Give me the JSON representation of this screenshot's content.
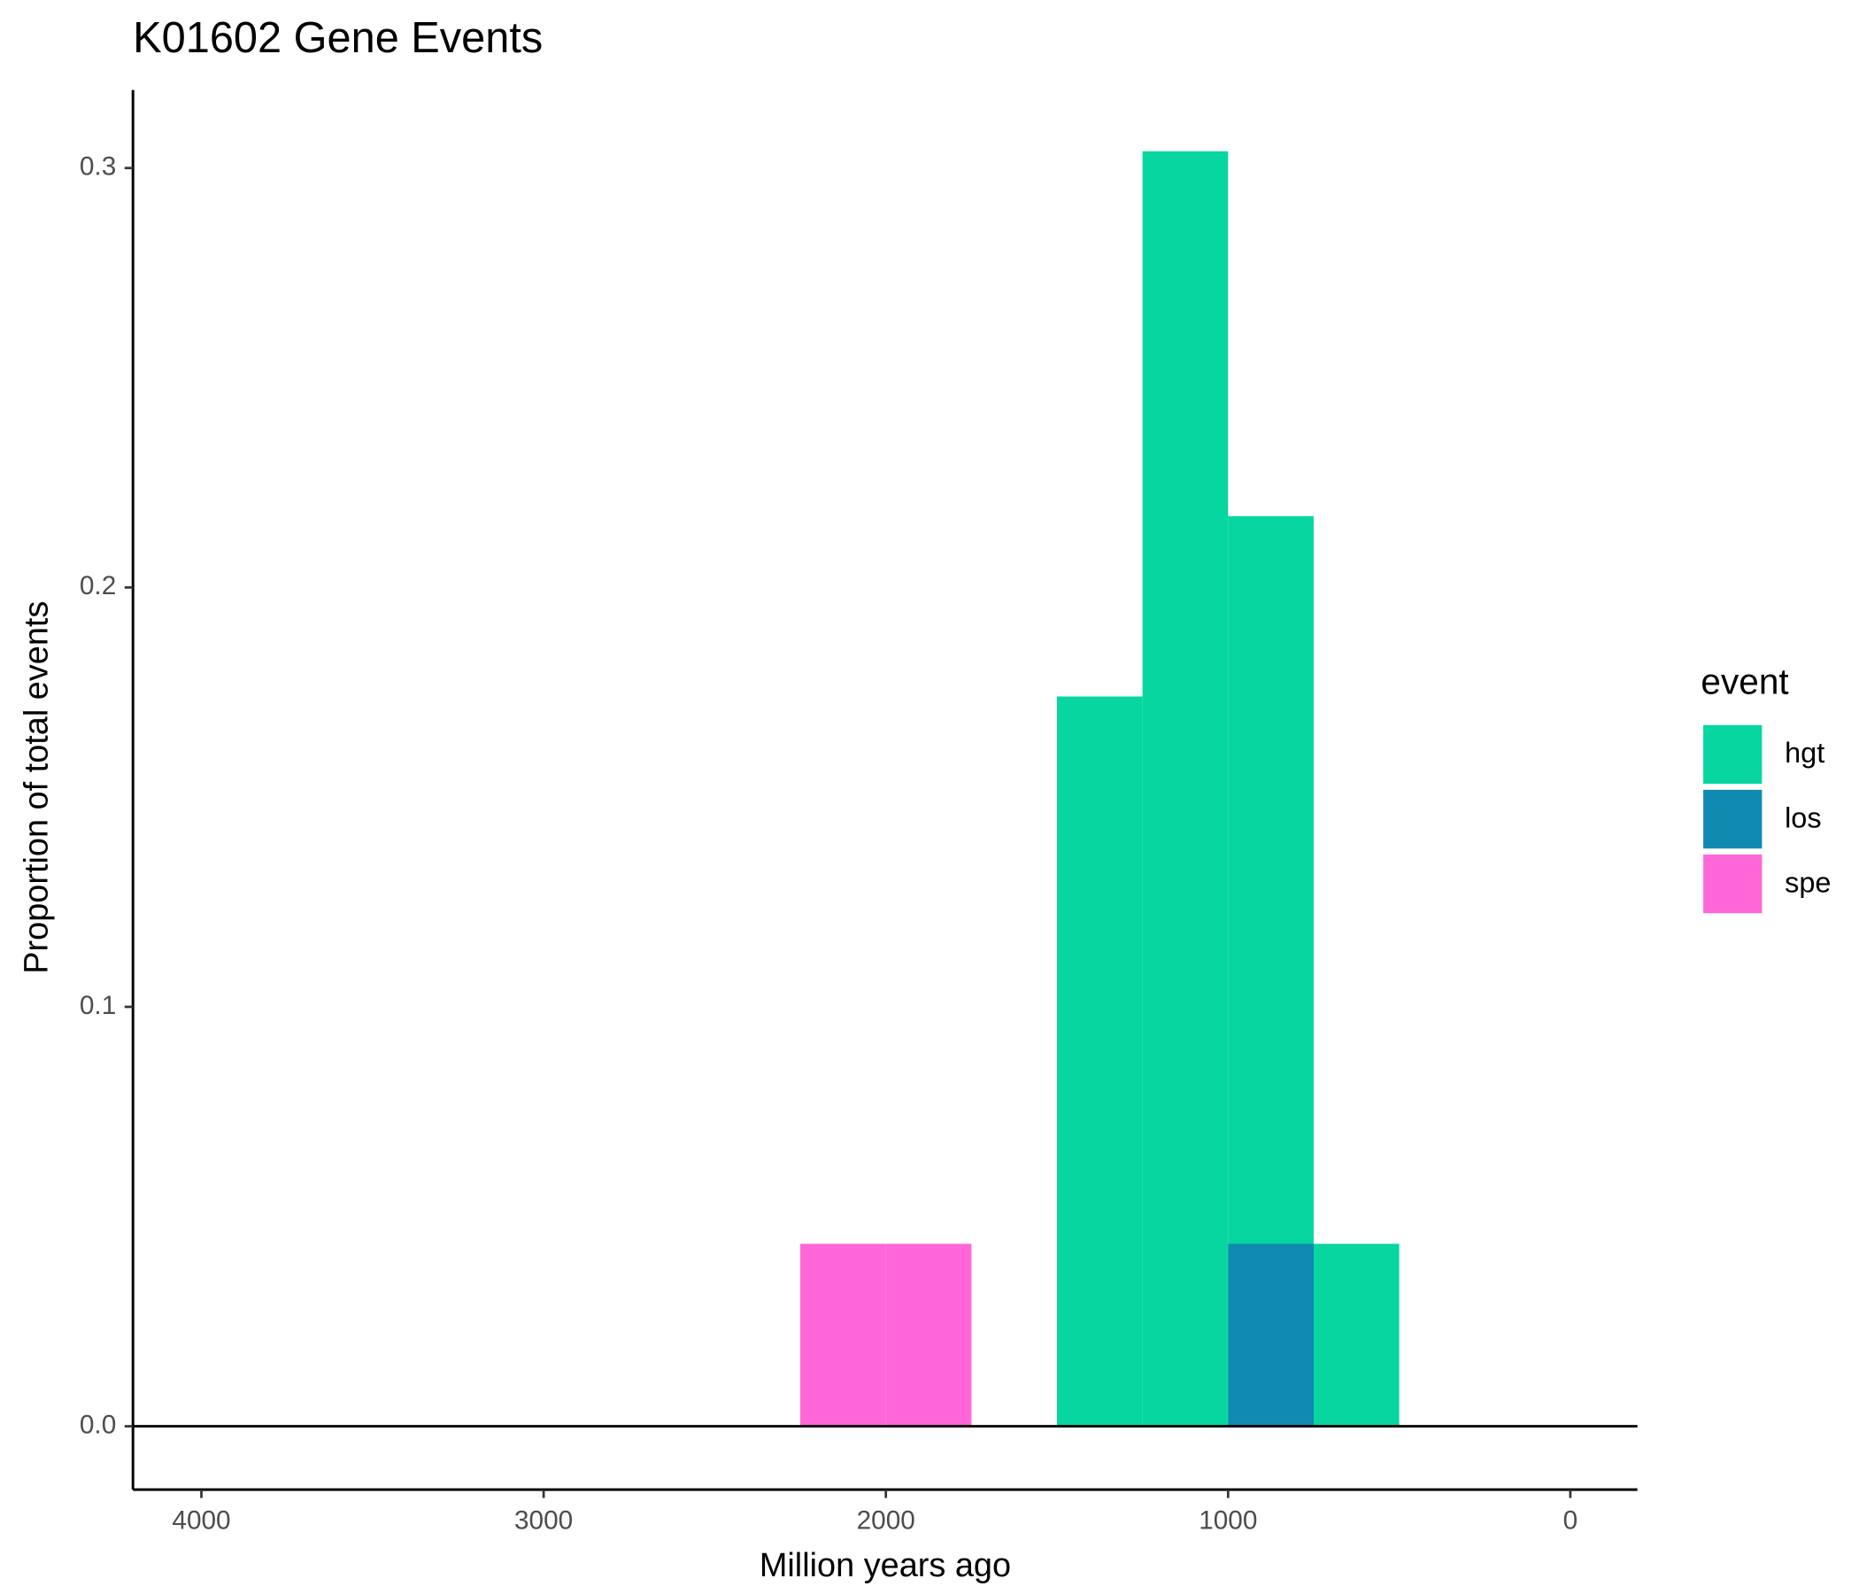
{
  "chart_data": {
    "type": "histogram",
    "title": "K01602 Gene Events",
    "x_label": "Million years ago",
    "y_label": "Proportion of total events",
    "legend_title": "event",
    "legend": "right",
    "bins": [
      2250,
      2000,
      1750,
      1500,
      1250,
      1000,
      750,
      500
    ],
    "series": [
      {
        "name": "hgt",
        "color": "#07d6a0",
        "values": [
          0,
          0,
          0,
          0.174,
          0.304,
          0.217,
          0.0435
        ]
      },
      {
        "name": "los",
        "color": "#118ab2",
        "values": [
          0,
          0,
          0,
          0,
          0,
          0.0435,
          0
        ]
      },
      {
        "name": "spe",
        "color": "#ff66d8",
        "values": [
          0.0435,
          0.0435,
          0,
          0,
          0,
          0,
          0
        ]
      }
    ],
    "hline": 0,
    "xlim": [
      4200,
      -196
    ],
    "xticks": [
      4000,
      3000,
      2000,
      1000,
      0
    ],
    "ylim": [
      -0.0151,
      0.3186
    ],
    "yticks": [
      {
        "value": 0,
        "label": "0.0"
      },
      0.1,
      0.2,
      0.3
    ],
    "grid": false
  }
}
